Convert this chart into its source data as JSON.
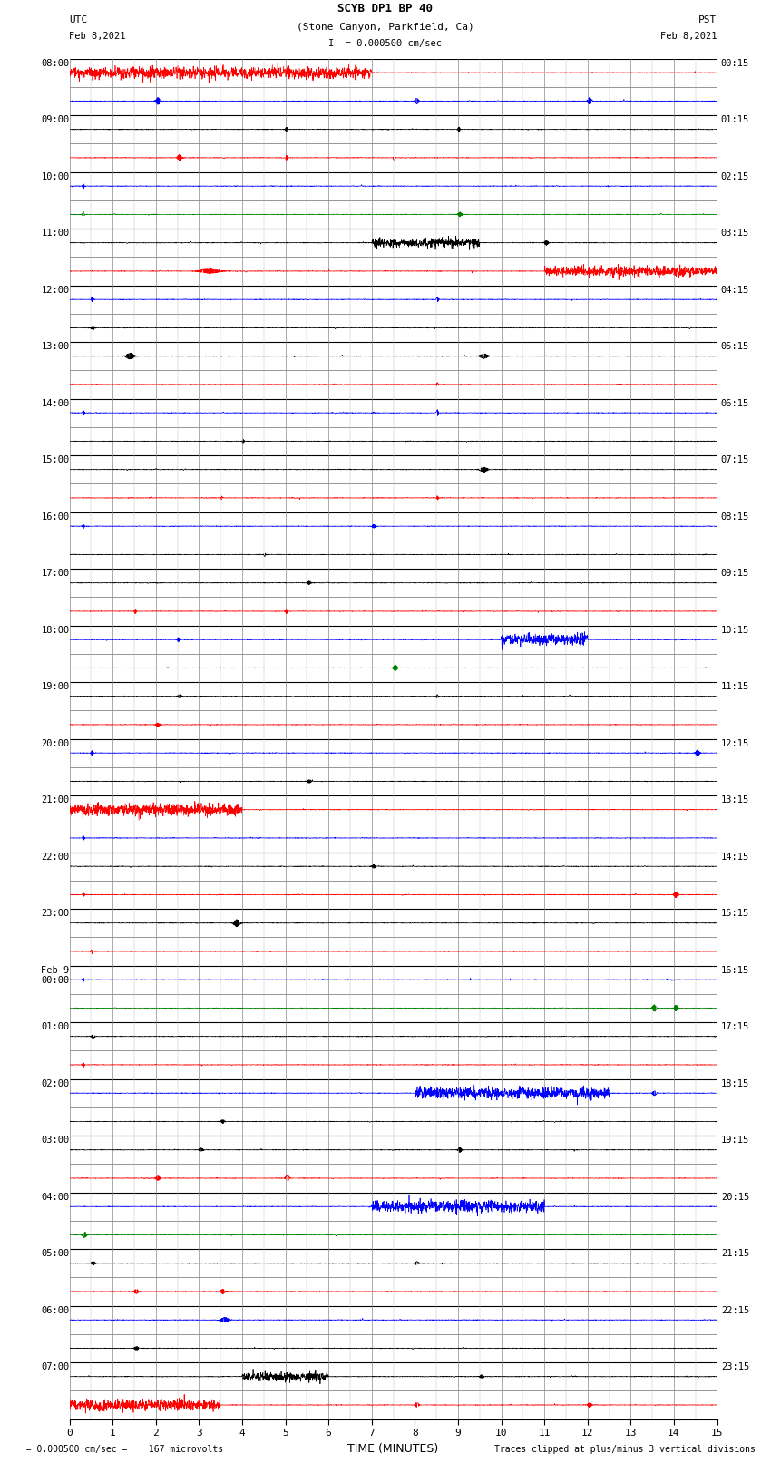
{
  "title_line1": "SCYB DP1 BP 40",
  "title_line2": "(Stone Canyon, Parkfield, Ca)",
  "scale_label": "I  = 0.000500 cm/sec",
  "left_label": "UTC",
  "right_label": "PST",
  "date_left": "Feb 8,2021",
  "date_right": "Feb 8,2021",
  "xlabel": "TIME (MINUTES)",
  "footer_left": "  = 0.000500 cm/sec =    167 microvolts",
  "footer_right": "Traces clipped at plus/minus 3 vertical divisions",
  "xmin": 0,
  "xmax": 15,
  "xticks": [
    0,
    1,
    2,
    3,
    4,
    5,
    6,
    7,
    8,
    9,
    10,
    11,
    12,
    13,
    14,
    15
  ],
  "num_rows": 48,
  "utc_labels": [
    "08:00",
    "",
    "09:00",
    "",
    "10:00",
    "",
    "11:00",
    "",
    "12:00",
    "",
    "13:00",
    "",
    "14:00",
    "",
    "15:00",
    "",
    "16:00",
    "",
    "17:00",
    "",
    "18:00",
    "",
    "19:00",
    "",
    "20:00",
    "",
    "21:00",
    "",
    "22:00",
    "",
    "23:00",
    "",
    "Feb 9\n00:00",
    "",
    "01:00",
    "",
    "02:00",
    "",
    "03:00",
    "",
    "04:00",
    "",
    "05:00",
    "",
    "06:00",
    "",
    "07:00",
    ""
  ],
  "pst_labels": [
    "00:15",
    "",
    "01:15",
    "",
    "02:15",
    "",
    "03:15",
    "",
    "04:15",
    "",
    "05:15",
    "",
    "06:15",
    "",
    "07:15",
    "",
    "08:15",
    "",
    "09:15",
    "",
    "10:15",
    "",
    "11:15",
    "",
    "12:15",
    "",
    "13:15",
    "",
    "14:15",
    "",
    "15:15",
    "",
    "16:15",
    "",
    "17:15",
    "",
    "18:15",
    "",
    "19:15",
    "",
    "20:15",
    "",
    "21:15",
    "",
    "22:15",
    "",
    "23:15",
    ""
  ],
  "background_color": "#ffffff",
  "grid_color_h": "#000000",
  "grid_color_v": "#888888",
  "fig_width": 8.5,
  "fig_height": 16.13
}
